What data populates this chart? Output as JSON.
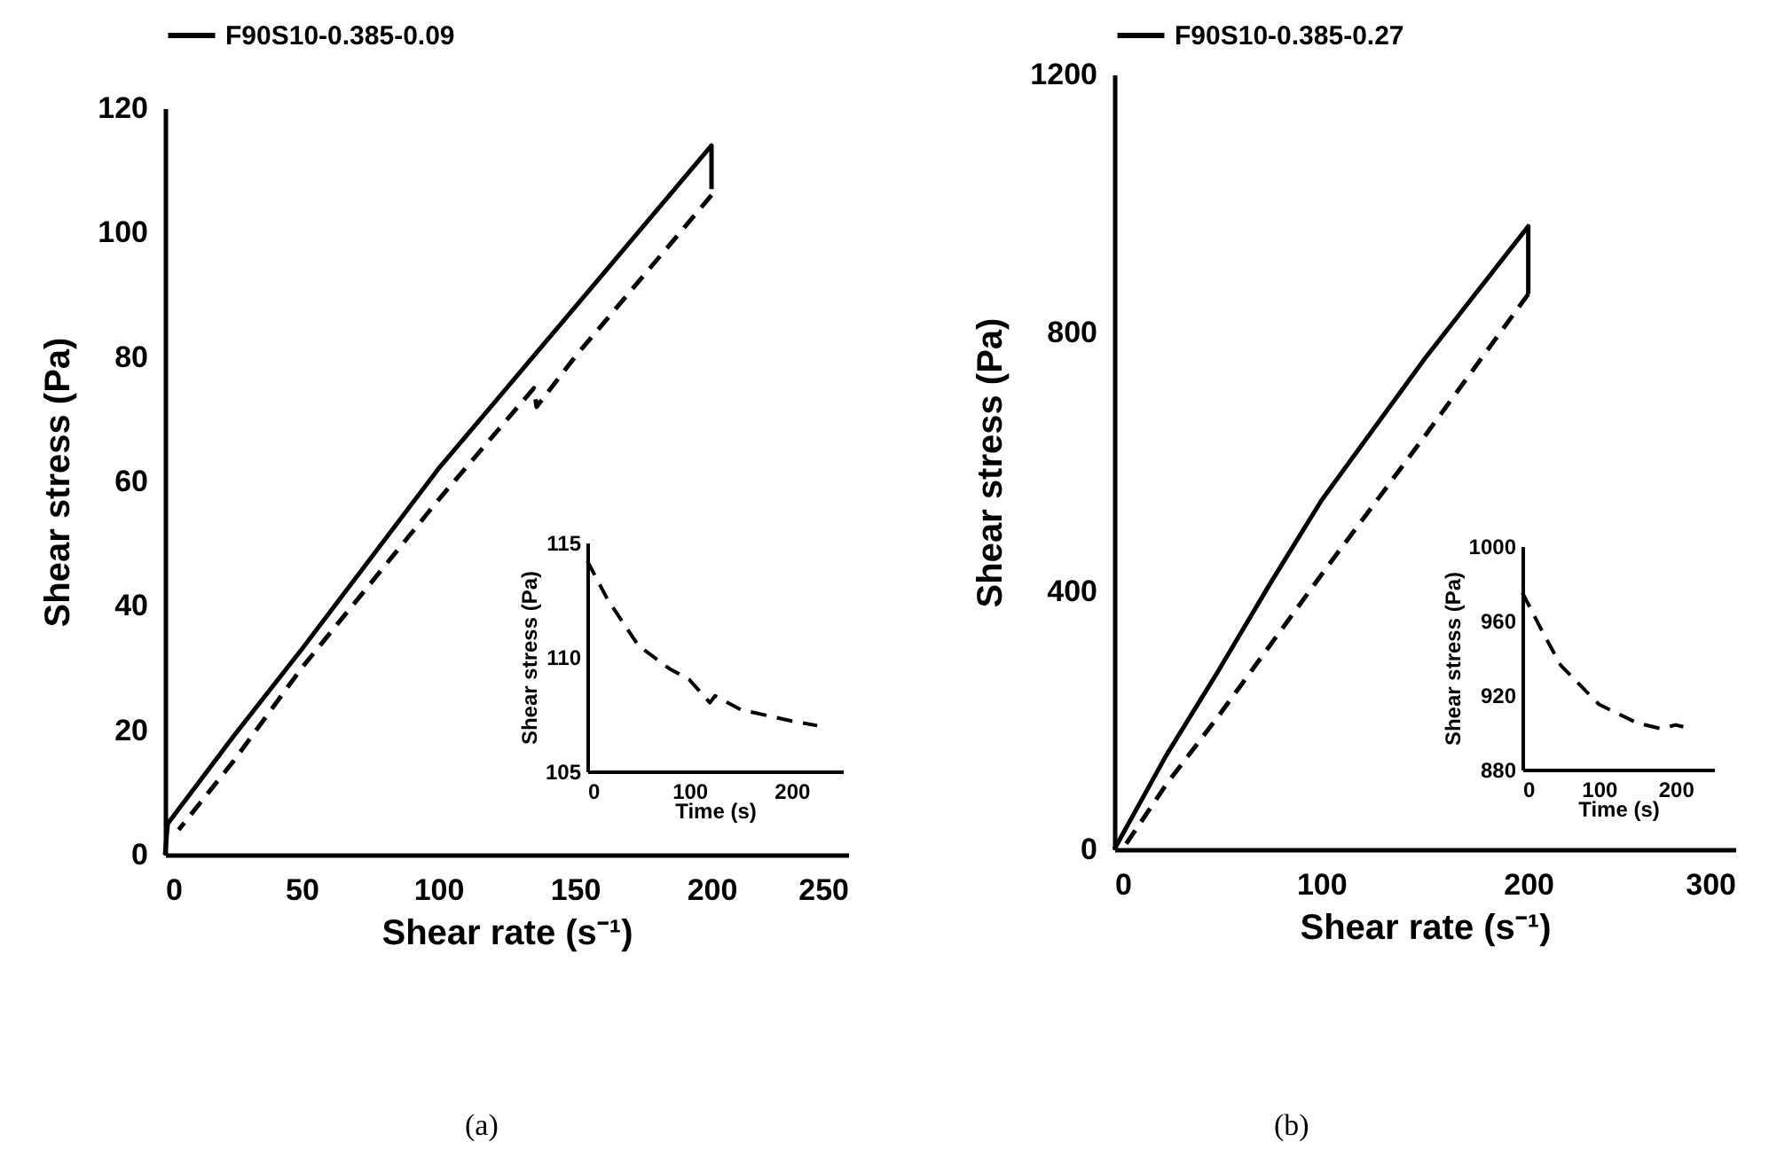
{
  "chart_data": [
    {
      "type": "line",
      "xlabel": "Shear rate (s⁻¹)",
      "ylabel": "Shear stress (Pa)",
      "xlim": [
        0,
        250
      ],
      "xticks": [
        0,
        50,
        100,
        150,
        200,
        250
      ],
      "ylim": [
        0,
        120
      ],
      "yticks": [
        0,
        20,
        40,
        60,
        80,
        100,
        120
      ],
      "legend": "top",
      "grid": false,
      "annotations": [
        "(a)"
      ],
      "series": [
        {
          "name": "F90S10-0.385-0.09",
          "color": "#000000",
          "line_style": "solid",
          "x": [
            0,
            1,
            25,
            50,
            100,
            150,
            200,
            200
          ],
          "values": [
            0,
            5,
            19,
            33,
            62,
            88,
            114,
            107
          ]
        },
        {
          "color": "#000000",
          "line_style": "dashed",
          "x": [
            200,
            150,
            136,
            135,
            100,
            50,
            25,
            5
          ],
          "values": [
            106,
            80,
            72,
            75,
            57,
            30,
            15,
            4
          ]
        }
      ]
    },
    {
      "type": "line",
      "xlabel": "Time (s)",
      "ylabel": "Shear stress (Pa)",
      "xlim": [
        0,
        250
      ],
      "xticks": [
        0,
        100,
        200
      ],
      "ylim": [
        105,
        115
      ],
      "yticks": [
        105,
        110,
        115
      ],
      "grid": false,
      "series": [
        {
          "color": "#000000",
          "line_style": "dashed",
          "x": [
            0,
            20,
            50,
            80,
            100,
            120,
            125,
            150,
            200,
            225
          ],
          "values": [
            114.2,
            112.5,
            110.5,
            109.5,
            109,
            108,
            108.3,
            107.7,
            107.2,
            107
          ]
        }
      ]
    },
    {
      "type": "line",
      "xlabel": "Shear rate (s⁻¹)",
      "ylabel": "Shear stress (Pa)",
      "xlim": [
        0,
        300
      ],
      "xticks": [
        0,
        100,
        200,
        300
      ],
      "ylim": [
        0,
        1200
      ],
      "yticks": [
        0,
        400,
        800,
        1200
      ],
      "legend": "top",
      "grid": false,
      "annotations": [
        "(b)"
      ],
      "series": [
        {
          "name": "F90S10-0.385-0.27",
          "color": "#000000",
          "line_style": "solid",
          "x": [
            0,
            25,
            50,
            75,
            100,
            150,
            200,
            200
          ],
          "values": [
            0,
            145,
            275,
            410,
            540,
            760,
            965,
            860
          ]
        },
        {
          "color": "#000000",
          "line_style": "dashed",
          "x": [
            200,
            150,
            100,
            50,
            25,
            5
          ],
          "values": [
            860,
            640,
            425,
            205,
            100,
            5
          ]
        }
      ]
    },
    {
      "type": "line",
      "xlabel": "Time (s)",
      "ylabel": "Shear stress (Pa)",
      "xlim": [
        0,
        250
      ],
      "xticks": [
        0,
        100,
        200
      ],
      "ylim": [
        880,
        1000
      ],
      "yticks": [
        880,
        920,
        960,
        1000
      ],
      "grid": false,
      "series": [
        {
          "color": "#000000",
          "line_style": "dashed",
          "x": [
            0,
            25,
            50,
            100,
            150,
            180,
            200,
            210
          ],
          "values": [
            975,
            955,
            936,
            915,
            905,
            902,
            904,
            903
          ]
        }
      ]
    }
  ]
}
